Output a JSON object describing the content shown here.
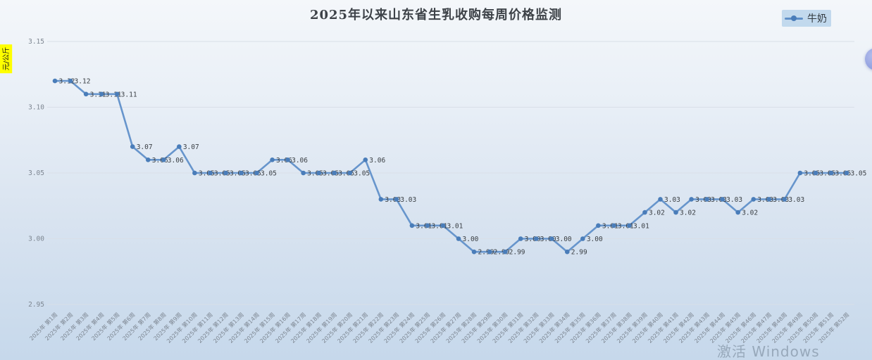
{
  "title": "2025年以来山东省生乳收购每周价格监测",
  "legend": {
    "label": "牛奶"
  },
  "y_axis_name": "元/公斤",
  "watermark": "激活 Windows",
  "colors": {
    "line": "#6795cc",
    "marker": "#4a7db9",
    "data_label": "#3a3f44",
    "axis_text": "#7d8691",
    "grid": "#d9dfe8",
    "legend_bg": "#a8c9e7",
    "yname_bg": "#ffff00",
    "watermark_text": "#7e8fa0"
  },
  "chart_data": {
    "type": "line",
    "title": "2025年以来山东省生乳收购每周价格监测",
    "ylabel": "元/公斤",
    "ylim": [
      2.95,
      3.15
    ],
    "yticks": [
      2.95,
      3.0,
      3.05,
      3.1,
      3.15
    ],
    "grid": true,
    "legend_position": "top-right",
    "x_label_rotation": -45,
    "categories": [
      "2025年 第1周",
      "2025年 第2周",
      "2025年 第3周",
      "2025年 第4周",
      "2025年 第5周",
      "2025年 第6周",
      "2025年 第7周",
      "2025年 第8周",
      "2025年 第9周",
      "2025年 第10周",
      "2025年 第11周",
      "2025年 第12周",
      "2025年 第13周",
      "2025年 第14周",
      "2025年 第15周",
      "2025年 第16周",
      "2025年 第17周",
      "2025年 第18周",
      "2025年 第19周",
      "2025年 第20周",
      "2025年 第21周",
      "2025年 第22周",
      "2025年 第23周",
      "2025年 第24周",
      "2025年 第25周",
      "2025年 第26周",
      "2025年 第27周",
      "2025年 第28周",
      "2025年 第29周",
      "2025年 第30周",
      "2025年 第31周",
      "2025年 第32周",
      "2025年 第33周",
      "2025年 第34周",
      "2025年 第35周",
      "2025年 第36周",
      "2025年 第37周",
      "2025年 第38周",
      "2025年 第39周",
      "2025年 第40周",
      "2025年 第41周",
      "2025年 第42周",
      "2025年 第43周",
      "2025年 第44周",
      "2025年 第45周",
      "2025年 第46周",
      "2025年 第47周",
      "2025年 第48周",
      "2025年 第49周",
      "2025年 第50周",
      "2025年 第51周",
      "2025年 第52周"
    ],
    "series": [
      {
        "name": "牛奶",
        "values": [
          3.12,
          3.12,
          3.11,
          3.11,
          3.11,
          3.07,
          3.06,
          3.06,
          3.07,
          3.05,
          3.05,
          3.05,
          3.05,
          3.05,
          3.06,
          3.06,
          3.05,
          3.05,
          3.05,
          3.05,
          3.06,
          3.03,
          3.03,
          3.01,
          3.01,
          3.01,
          3.0,
          2.99,
          2.99,
          2.99,
          3.0,
          3.0,
          3.0,
          2.99,
          3.0,
          3.01,
          3.01,
          3.01,
          3.02,
          3.03,
          3.02,
          3.03,
          3.03,
          3.03,
          3.02,
          3.03,
          3.03,
          3.03,
          3.05,
          3.05,
          3.05,
          3.05
        ]
      }
    ]
  }
}
